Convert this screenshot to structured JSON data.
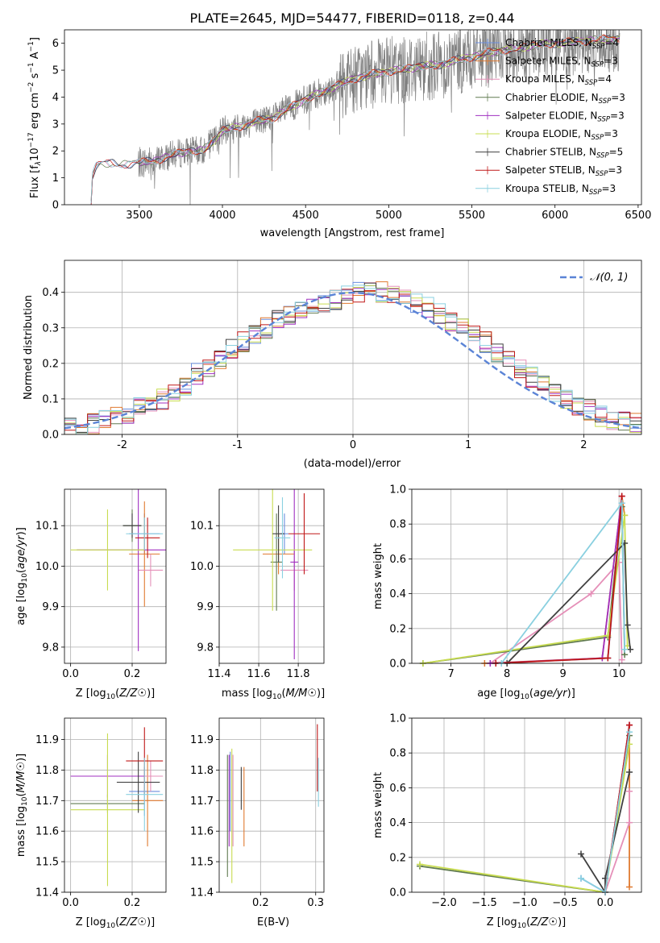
{
  "figure_title": "PLATE=2645, MJD=54477, FIBERID=0118, z=0.44",
  "series_colors": [
    "#6b8ede",
    "#e07a30",
    "#e58fb8",
    "#607a50",
    "#a030c0",
    "#c8dc50",
    "#404040",
    "#c01818",
    "#8ad0e0"
  ],
  "chart_data": [
    {
      "type": "line",
      "id": "spectrum",
      "title": "PLATE=2645, MJD=54477, FIBERID=0118, z=0.44",
      "xlabel": "wavelength [Angstrom, rest frame]",
      "ylabel": "Flux [f",
      "xlim": [
        3050,
        6520
      ],
      "ylim": [
        0,
        6.5
      ],
      "xticks": [
        3500,
        4000,
        4500,
        5000,
        5500,
        6000,
        6500
      ],
      "yticks": [
        0,
        1,
        2,
        3,
        4,
        5,
        6
      ],
      "grid": false,
      "legend_position": "lower-right",
      "legend": [
        {
          "name": "Chabrier MILES, N",
          "sub": "SSP",
          "suffix": "=4"
        },
        {
          "name": "Salpeter MILES, N",
          "sub": "SSP",
          "suffix": "=3"
        },
        {
          "name": "Kroupa MILES, N",
          "sub": "SSP",
          "suffix": "=4"
        },
        {
          "name": "Chabrier ELODIE, N",
          "sub": "SSP",
          "suffix": "=3"
        },
        {
          "name": "Salpeter ELODIE, N",
          "sub": "SSP",
          "suffix": "=3"
        },
        {
          "name": "Kroupa ELODIE, N",
          "sub": "SSP",
          "suffix": "=3"
        },
        {
          "name": "Chabrier STELIB, N",
          "sub": "SSP",
          "suffix": "=5"
        },
        {
          "name": "Salpeter STELIB, N",
          "sub": "SSP",
          "suffix": "=3"
        },
        {
          "name": "Kroupa STELIB, N",
          "sub": "SSP",
          "suffix": "=3"
        }
      ],
      "continuum": [
        [
          3210,
          0
        ],
        [
          3215,
          1.0
        ],
        [
          3240,
          1.45
        ],
        [
          3300,
          1.55
        ],
        [
          3400,
          1.5
        ],
        [
          3500,
          1.55
        ],
        [
          3600,
          1.65
        ],
        [
          3700,
          1.85
        ],
        [
          3800,
          2.0
        ],
        [
          3880,
          2.0
        ],
        [
          3950,
          2.4
        ],
        [
          4000,
          2.75
        ],
        [
          4100,
          2.9
        ],
        [
          4200,
          3.1
        ],
        [
          4300,
          3.2
        ],
        [
          4400,
          3.6
        ],
        [
          4500,
          3.9
        ],
        [
          4600,
          4.2
        ],
        [
          4700,
          4.45
        ],
        [
          4800,
          4.7
        ],
        [
          4900,
          4.85
        ],
        [
          5000,
          4.95
        ],
        [
          5100,
          5.05
        ],
        [
          5200,
          5.15
        ],
        [
          5300,
          5.2
        ],
        [
          5400,
          5.35
        ],
        [
          5500,
          5.5
        ],
        [
          5600,
          5.65
        ],
        [
          5700,
          5.75
        ],
        [
          5800,
          5.85
        ],
        [
          5900,
          5.95
        ],
        [
          6000,
          6.0
        ],
        [
          6100,
          6.05
        ],
        [
          6200,
          6.1
        ],
        [
          6300,
          6.15
        ],
        [
          6390,
          6.15
        ]
      ]
    },
    {
      "type": "line",
      "id": "residuals",
      "xlabel": "(data-model)/error",
      "ylabel": "Normed distribution",
      "xlim": [
        -2.5,
        2.5
      ],
      "ylim": [
        0,
        0.49
      ],
      "xticks": [
        -2,
        -1,
        0,
        1,
        2
      ],
      "yticks": [
        0.0,
        0.1,
        0.2,
        0.3,
        0.4
      ],
      "grid": true,
      "legend": [
        {
          "name": "𝒩(0, 1)"
        }
      ],
      "legend_position": "top-right"
    },
    {
      "type": "scatter",
      "id": "age-vs-Z",
      "xlabel": "Z [log",
      "ylabel": "age  [log",
      "xlim": [
        -0.02,
        0.31
      ],
      "ylim": [
        9.76,
        10.19
      ],
      "xticks": [
        0.0,
        0.2
      ],
      "yticks": [
        9.8,
        9.9,
        10.0,
        10.1
      ],
      "grid": true,
      "points": [
        {
          "x": 0.24,
          "y": 10.08,
          "xerr": 0.05,
          "yerr": 0.05
        },
        {
          "x": 0.24,
          "y": 10.03,
          "xerr": 0.05,
          "yerr": 0.13
        },
        {
          "x": 0.26,
          "y": 9.99,
          "xerr": 0.04,
          "yerr": 0.04
        },
        {
          "x": 0.2,
          "y": 10.1,
          "xerr": 0.03,
          "yerr": 0.04
        },
        {
          "x": 0.22,
          "y": 10.04,
          "xerr": 0.2,
          "yerr": 0.25
        },
        {
          "x": 0.12,
          "y": 10.04,
          "xerr": 0.12,
          "yerr": 0.1
        },
        {
          "x": 0.2,
          "y": 10.1,
          "xerr": 0.03,
          "yerr": 0.03
        },
        {
          "x": 0.25,
          "y": 10.07,
          "xerr": 0.04,
          "yerr": 0.05
        },
        {
          "x": 0.24,
          "y": 10.08,
          "xerr": 0.06,
          "yerr": 0.04
        }
      ]
    },
    {
      "type": "scatter",
      "id": "age-vs-mass",
      "xlabel": "mass [log",
      "ylabel": "",
      "xlim": [
        11.4,
        11.93
      ],
      "ylim": [
        9.76,
        10.19
      ],
      "xticks": [
        11.4,
        11.6,
        11.8
      ],
      "yticks": [
        9.8,
        9.9,
        10.0,
        10.1
      ],
      "grid": true,
      "points": [
        {
          "x": 11.73,
          "y": 10.08,
          "xerr": 0.02,
          "yerr": 0.05
        },
        {
          "x": 11.7,
          "y": 10.03,
          "xerr": 0.08,
          "yerr": 0.05
        },
        {
          "x": 11.78,
          "y": 9.99,
          "xerr": 0.07,
          "yerr": 0.05
        },
        {
          "x": 11.69,
          "y": 10.01,
          "xerr": 0.03,
          "yerr": 0.12
        },
        {
          "x": 11.78,
          "y": 10.01,
          "xerr": 0.02,
          "yerr": 0.24
        },
        {
          "x": 11.67,
          "y": 10.04,
          "xerr": 0.2,
          "yerr": 0.15
        },
        {
          "x": 11.7,
          "y": 10.08,
          "xerr": 0.03,
          "yerr": 0.07
        },
        {
          "x": 11.83,
          "y": 10.08,
          "xerr": 0.08,
          "yerr": 0.1
        },
        {
          "x": 11.72,
          "y": 10.07,
          "xerr": 0.04,
          "yerr": 0.1
        }
      ]
    },
    {
      "type": "line",
      "id": "cdf-age",
      "xlabel": "age  [log",
      "ylabel": "mass weight",
      "xlim": [
        6.3,
        10.4
      ],
      "ylim": [
        0,
        1.0
      ],
      "xticks": [
        7,
        8,
        9,
        10
      ],
      "yticks": [
        0.0,
        0.2,
        0.4,
        0.6,
        0.8,
        1.0
      ],
      "grid": true,
      "series": [
        {
          "x": [
            7.8,
            9.8,
            10.05,
            10.1
          ],
          "y": [
            0,
            0.03,
            0.92,
            0.08
          ]
        },
        {
          "x": [
            7.6,
            9.7,
            10.05,
            10.1
          ],
          "y": [
            0,
            0.03,
            0.96,
            0.85
          ]
        },
        {
          "x": [
            7.7,
            9.5,
            10.0,
            10.05
          ],
          "y": [
            0,
            0.4,
            0.58,
            0.02
          ]
        },
        {
          "x": [
            6.5,
            9.8,
            10.05,
            10.1
          ],
          "y": [
            0,
            0.15,
            0.9,
            0.05
          ]
        },
        {
          "x": [
            7.7,
            9.7,
            10.05
          ],
          "y": [
            0,
            0.03,
            0.96
          ]
        },
        {
          "x": [
            6.5,
            9.8,
            10.1,
            10.15
          ],
          "y": [
            0,
            0.16,
            0.85,
            0.1
          ]
        },
        {
          "x": [
            8.0,
            10.1,
            10.15,
            10.2
          ],
          "y": [
            0,
            0.69,
            0.22,
            0.08
          ]
        },
        {
          "x": [
            7.8,
            9.8,
            10.05
          ],
          "y": [
            0,
            0.03,
            0.96
          ]
        },
        {
          "x": [
            7.9,
            10.05,
            10.1
          ],
          "y": [
            0,
            0.92,
            0.08
          ]
        }
      ]
    },
    {
      "type": "scatter",
      "id": "mass-vs-Z",
      "xlabel": "Z [log",
      "ylabel": "mass [log",
      "xlim": [
        -0.02,
        0.31
      ],
      "ylim": [
        11.4,
        11.97
      ],
      "xticks": [
        0.0,
        0.2
      ],
      "yticks": [
        11.4,
        11.5,
        11.6,
        11.7,
        11.8,
        11.9
      ],
      "grid": true,
      "points": [
        {
          "x": 0.24,
          "y": 11.73,
          "xerr": 0.05,
          "yerr": 0.08
        },
        {
          "x": 0.25,
          "y": 11.7,
          "xerr": 0.05,
          "yerr": 0.15
        },
        {
          "x": 0.26,
          "y": 11.78,
          "xerr": 0.04,
          "yerr": 0.05
        },
        {
          "x": 0.12,
          "y": 11.69,
          "xerr": 0.12,
          "yerr": 0.03
        },
        {
          "x": 0.12,
          "y": 11.78,
          "xerr": 0.12,
          "yerr": 0.07
        },
        {
          "x": 0.12,
          "y": 11.67,
          "xerr": 0.12,
          "yerr": 0.25
        },
        {
          "x": 0.22,
          "y": 11.76,
          "xerr": 0.07,
          "yerr": 0.1
        },
        {
          "x": 0.24,
          "y": 11.83,
          "xerr": 0.06,
          "yerr": 0.11
        },
        {
          "x": 0.24,
          "y": 11.72,
          "xerr": 0.06,
          "yerr": 0.12
        }
      ]
    },
    {
      "type": "scatter",
      "id": "mass-vs-ebv",
      "xlabel": "E(B-V)",
      "ylabel": "",
      "xlim": [
        0.125,
        0.315
      ],
      "ylim": [
        11.4,
        11.97
      ],
      "xticks": [
        0.2,
        0.3
      ],
      "yticks": [
        11.4,
        11.5,
        11.6,
        11.7,
        11.8,
        11.9
      ],
      "grid": true,
      "points": [
        {
          "x": 0.145,
          "y": 11.73,
          "xerr": 0.0,
          "yerr": 0.13
        },
        {
          "x": 0.17,
          "y": 11.68,
          "xerr": 0.0,
          "yerr": 0.13
        },
        {
          "x": 0.15,
          "y": 11.7,
          "xerr": 0.0,
          "yerr": 0.15
        },
        {
          "x": 0.14,
          "y": 11.65,
          "xerr": 0.0,
          "yerr": 0.2
        },
        {
          "x": 0.143,
          "y": 11.7,
          "xerr": 0.0,
          "yerr": 0.15
        },
        {
          "x": 0.148,
          "y": 11.65,
          "xerr": 0.0,
          "yerr": 0.22
        },
        {
          "x": 0.165,
          "y": 11.74,
          "xerr": 0.0,
          "yerr": 0.07
        },
        {
          "x": 0.303,
          "y": 11.84,
          "xerr": 0.0,
          "yerr": 0.11
        },
        {
          "x": 0.305,
          "y": 11.76,
          "xerr": 0.0,
          "yerr": 0.08
        }
      ]
    },
    {
      "type": "line",
      "id": "cdf-Z",
      "xlabel": "Z [log",
      "ylabel": "mass weight",
      "xlim": [
        -2.4,
        0.45
      ],
      "ylim": [
        0,
        1.0
      ],
      "xticks": [
        -2.0,
        -1.5,
        -1.0,
        -0.5,
        0.0
      ],
      "yticks": [
        0.0,
        0.2,
        0.4,
        0.6,
        0.8,
        1.0
      ],
      "grid": true,
      "series": [
        {
          "x": [
            -0.3,
            0.0,
            0.3
          ],
          "y": [
            0.08,
            0,
            0.92
          ]
        },
        {
          "x": [
            0.0,
            0.3,
            0.3
          ],
          "y": [
            0,
            0.96,
            0.03
          ]
        },
        {
          "x": [
            0.0,
            0.3,
            0.3
          ],
          "y": [
            0,
            0.4,
            0.58
          ]
        },
        {
          "x": [
            -2.3,
            0.0,
            0.3
          ],
          "y": [
            0.15,
            0,
            0.9
          ]
        },
        {
          "x": [
            0.0,
            0.3
          ],
          "y": [
            0,
            0.96
          ]
        },
        {
          "x": [
            -2.3,
            0.0,
            0.3
          ],
          "y": [
            0.16,
            0,
            0.85
          ]
        },
        {
          "x": [
            -0.3,
            0.0,
            0.0,
            0.3
          ],
          "y": [
            0.22,
            0,
            0.08,
            0.69
          ]
        },
        {
          "x": [
            0.0,
            0.3
          ],
          "y": [
            0,
            0.96
          ]
        },
        {
          "x": [
            -0.3,
            0.0,
            0.3
          ],
          "y": [
            0.08,
            0,
            0.92
          ]
        }
      ]
    }
  ],
  "residual_bins": [
    -2.5,
    -2.4,
    -2.3,
    -2.2,
    -2.1,
    -2.0,
    -1.9,
    -1.8,
    -1.7,
    -1.6,
    -1.5,
    -1.4,
    -1.3,
    -1.2,
    -1.1,
    -1.0,
    -0.9,
    -0.8,
    -0.7,
    -0.6,
    -0.5,
    -0.4,
    -0.3,
    -0.2,
    -0.1,
    0.0,
    0.1,
    0.2,
    0.3,
    0.4,
    0.5,
    0.6,
    0.7,
    0.8,
    0.9,
    1.0,
    1.1,
    1.2,
    1.3,
    1.4,
    1.5,
    1.6,
    1.7,
    1.8,
    1.9,
    2.0,
    2.1,
    2.2,
    2.3,
    2.4,
    2.5
  ],
  "residual_base": [
    0.02,
    0.02,
    0.03,
    0.04,
    0.05,
    0.06,
    0.08,
    0.09,
    0.1,
    0.12,
    0.14,
    0.17,
    0.19,
    0.21,
    0.24,
    0.26,
    0.28,
    0.3,
    0.32,
    0.34,
    0.35,
    0.36,
    0.37,
    0.38,
    0.39,
    0.4,
    0.4,
    0.4,
    0.39,
    0.38,
    0.37,
    0.36,
    0.34,
    0.32,
    0.3,
    0.28,
    0.26,
    0.23,
    0.21,
    0.18,
    0.16,
    0.14,
    0.12,
    0.1,
    0.08,
    0.07,
    0.05,
    0.04,
    0.04,
    0.03
  ]
}
